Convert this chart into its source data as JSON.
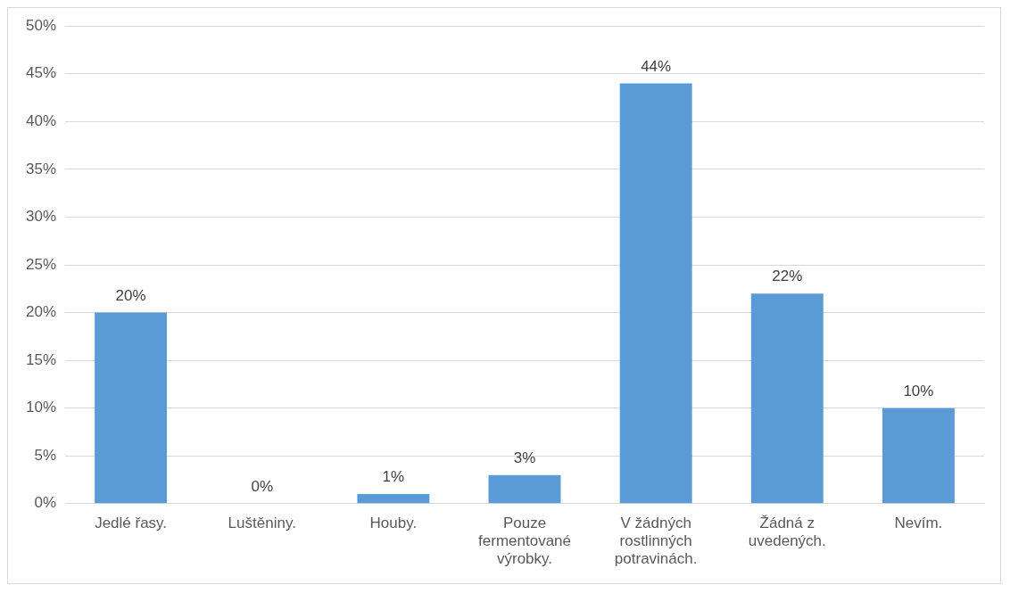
{
  "chart_data": {
    "type": "bar",
    "categories": [
      "Jedlé řasy.",
      "Luštěniny.",
      "Houby.",
      "Pouze fermentované výrobky.",
      "V žádných rostlinných potravinách.",
      "Žádná z uvedených.",
      "Nevím."
    ],
    "values": [
      20,
      0,
      1,
      3,
      44,
      22,
      10
    ],
    "value_labels": [
      "20%",
      "0%",
      "1%",
      "3%",
      "44%",
      "22%",
      "10%"
    ],
    "color": "#5b9bd5",
    "ylim": [
      0,
      50
    ],
    "yticks": [
      {
        "value": 0,
        "label": "0%"
      },
      {
        "value": 5,
        "label": "5%"
      },
      {
        "value": 10,
        "label": "10%"
      },
      {
        "value": 15,
        "label": "15%"
      },
      {
        "value": 20,
        "label": "20%"
      },
      {
        "value": 25,
        "label": "25%"
      },
      {
        "value": 30,
        "label": "30%"
      },
      {
        "value": 35,
        "label": "35%"
      },
      {
        "value": 40,
        "label": "40%"
      },
      {
        "value": 45,
        "label": "45%"
      },
      {
        "value": 50,
        "label": "50%"
      }
    ],
    "grid": "y",
    "legend": false
  }
}
